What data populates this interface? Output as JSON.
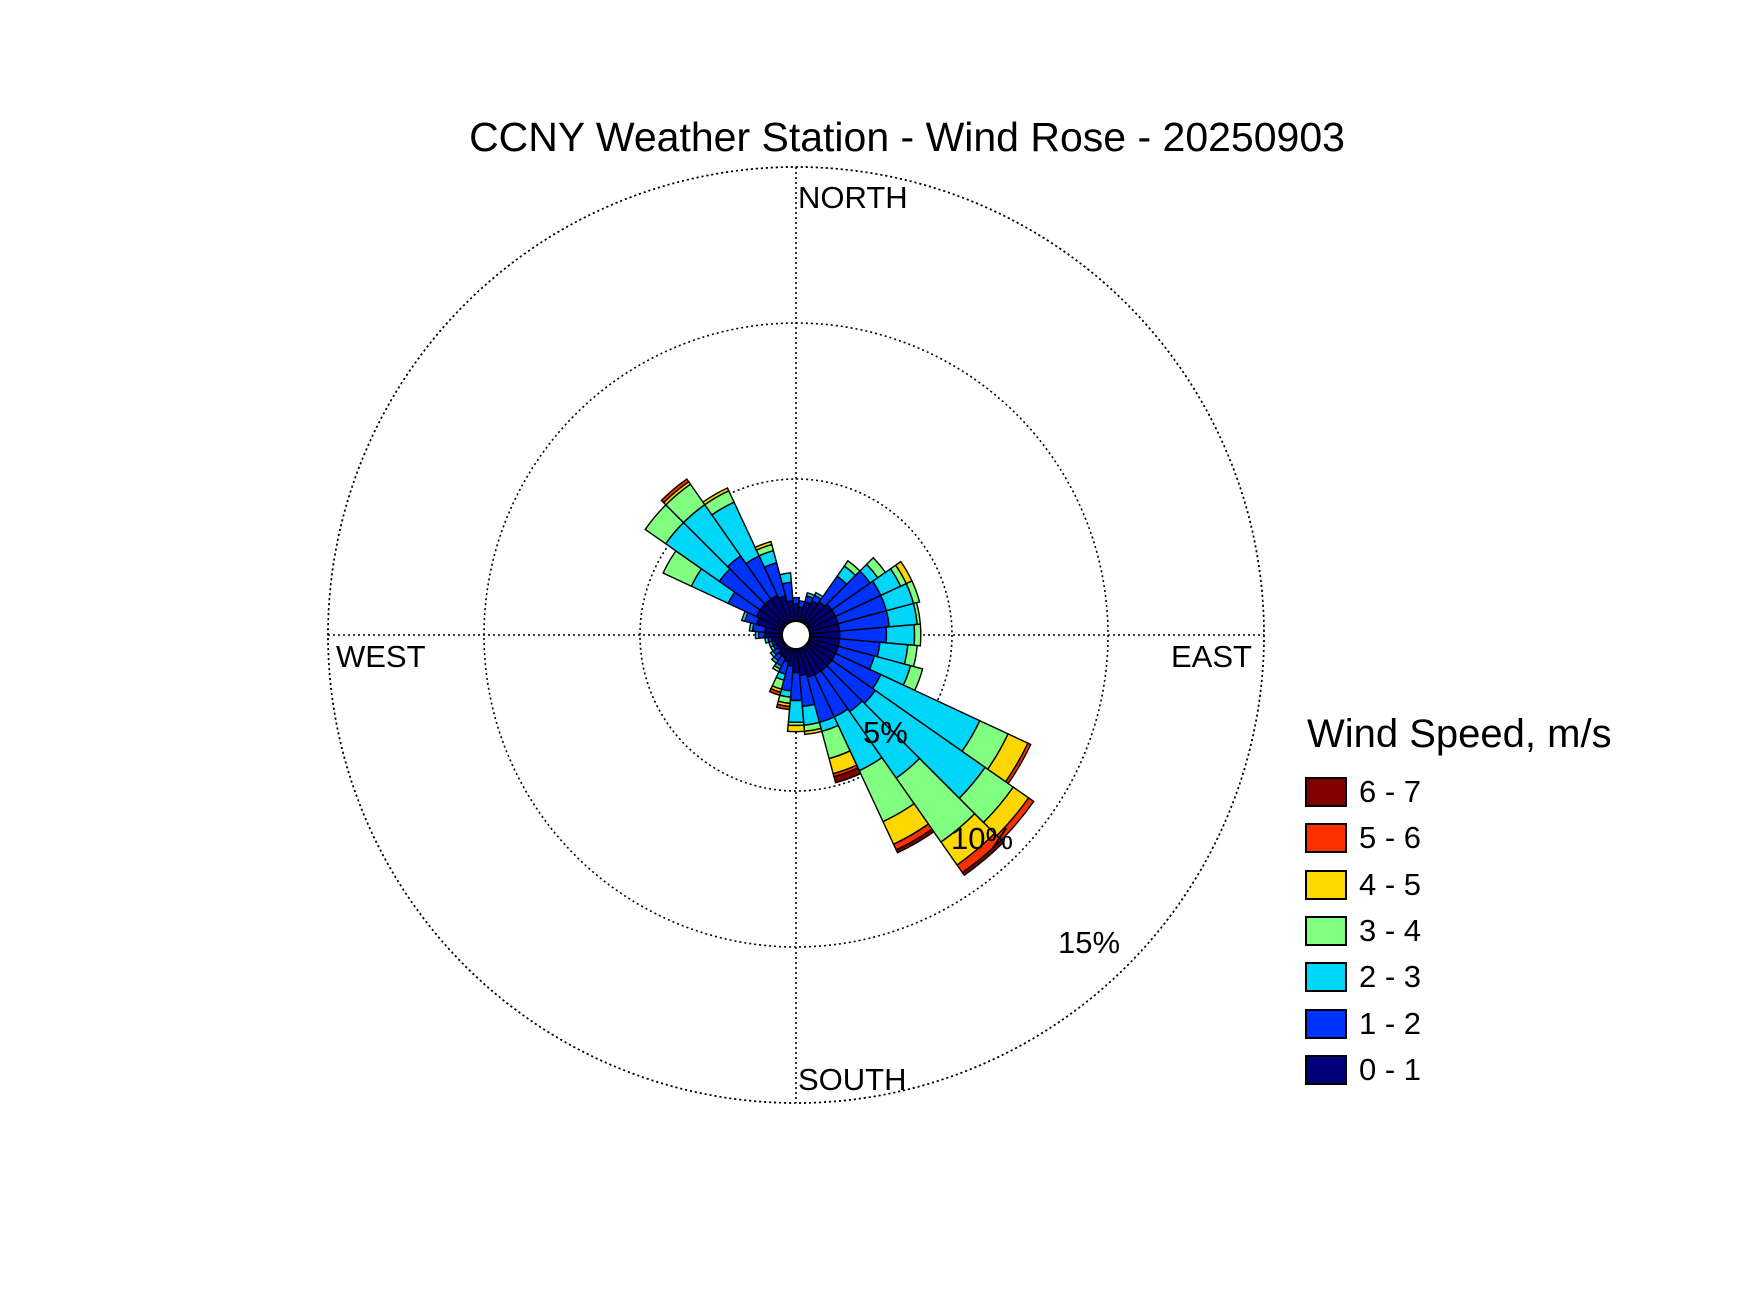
{
  "title": "CCNY Weather Station - Wind Rose - 20250903",
  "chart_data": {
    "type": "wind-rose",
    "title": "CCNY Weather Station - Wind Rose - 20250903",
    "cardinals": {
      "north": "NORTH",
      "east": "EAST",
      "south": "SOUTH",
      "west": "WEST"
    },
    "ring_values": [
      5,
      10,
      15
    ],
    "ring_labels": [
      "5%",
      "10%",
      "15%"
    ],
    "radial_unit": "percent frequency",
    "sector_width_deg": 10,
    "legend_title": "Wind Speed, m/s",
    "speed_bins": [
      {
        "label": "0 - 1",
        "color": "#00007A"
      },
      {
        "label": "1 - 2",
        "color": "#0032FF"
      },
      {
        "label": "2 - 3",
        "color": "#00D6F7"
      },
      {
        "label": "3 - 4",
        "color": "#80FF80"
      },
      {
        "label": "4 - 5",
        "color": "#FFD700"
      },
      {
        "label": "5 - 6",
        "color": "#FF3000"
      },
      {
        "label": "6 - 7",
        "color": "#800000"
      }
    ],
    "directions": [
      0,
      10,
      20,
      30,
      40,
      50,
      60,
      70,
      80,
      90,
      100,
      110,
      120,
      130,
      140,
      150,
      160,
      170,
      180,
      190,
      200,
      210,
      220,
      230,
      240,
      250,
      260,
      270,
      280,
      290,
      300,
      310,
      320,
      330,
      340,
      350
    ],
    "cumulative_percent": [
      [
        1.0,
        1.2,
        null,
        null,
        null,
        null,
        null
      ],
      [
        0.9,
        1.1,
        null,
        null,
        null,
        null,
        null
      ],
      [
        1.1,
        1.3,
        1.4,
        null,
        null,
        null,
        null
      ],
      [
        1.2,
        1.4,
        1.5,
        null,
        null,
        null,
        null
      ],
      [
        1.3,
        2.3,
        2.7,
        2.9,
        null,
        null,
        null
      ],
      [
        1.4,
        2.9,
        3.2,
        3.5,
        null,
        null,
        null
      ],
      [
        1.4,
        3.0,
        3.7,
        3.9,
        4.1,
        null,
        null
      ],
      [
        1.4,
        3.0,
        3.9,
        4.1,
        null,
        null,
        null
      ],
      [
        1.4,
        3.0,
        3.9,
        4.0,
        null,
        null,
        null
      ],
      [
        1.4,
        2.9,
        3.8,
        4.0,
        null,
        null,
        null
      ],
      [
        1.4,
        2.7,
        3.6,
        3.9,
        null,
        null,
        null
      ],
      [
        1.4,
        2.6,
        3.8,
        4.2,
        null,
        null,
        null
      ],
      [
        1.4,
        3.0,
        6.5,
        7.5,
        8.2,
        8.3,
        null
      ],
      [
        1.4,
        3.1,
        7.4,
        8.5,
        9.1,
        9.3,
        null
      ],
      [
        1.4,
        3.0,
        5.6,
        8.1,
        9.0,
        9.3,
        9.4
      ],
      [
        1.4,
        2.9,
        4.8,
        6.6,
        7.4,
        7.6,
        7.7
      ],
      [
        1.4,
        2.9,
        3.2,
        4.1,
        4.6,
        4.7,
        4.9
      ],
      [
        1.3,
        2.3,
        2.9,
        3.1,
        3.2,
        null,
        null
      ],
      [
        1.2,
        2.1,
        2.8,
        2.9,
        3.1,
        null,
        null
      ],
      [
        1.0,
        1.8,
        2.0,
        2.2,
        2.3,
        2.4,
        null
      ],
      [
        0.9,
        1.3,
        1.5,
        1.8,
        1.9,
        2.0,
        null
      ],
      [
        0.8,
        1.1,
        1.2,
        1.3,
        null,
        null,
        null
      ],
      [
        0.8,
        1.0,
        1.1,
        null,
        null,
        null,
        null
      ],
      [
        0.7,
        0.9,
        1.0,
        null,
        null,
        null,
        null
      ],
      [
        0.7,
        0.8,
        0.9,
        null,
        null,
        null,
        null
      ],
      [
        0.7,
        0.8,
        0.9,
        null,
        null,
        null,
        null
      ],
      [
        0.8,
        0.9,
        1.0,
        null,
        null,
        null,
        null
      ],
      [
        1.0,
        1.2,
        1.3,
        null,
        null,
        null,
        null
      ],
      [
        1.0,
        1.4,
        1.5,
        null,
        null,
        null,
        null
      ],
      [
        1.3,
        1.7,
        1.8,
        null,
        null,
        null,
        null
      ],
      [
        1.4,
        2.4,
        3.7,
        4.7,
        null,
        null,
        null
      ],
      [
        1.4,
        3.0,
        5.1,
        5.9,
        null,
        null,
        null
      ],
      [
        1.4,
        3.1,
        5.1,
        5.9,
        6.0,
        6.1,
        null
      ],
      [
        1.4,
        2.8,
        4.7,
        5.1,
        5.2,
        null,
        null
      ],
      [
        1.3,
        2.4,
        2.8,
        3.0,
        3.1,
        null,
        null
      ],
      [
        1.1,
        1.7,
        2.0,
        null,
        null,
        null,
        null
      ]
    ]
  }
}
